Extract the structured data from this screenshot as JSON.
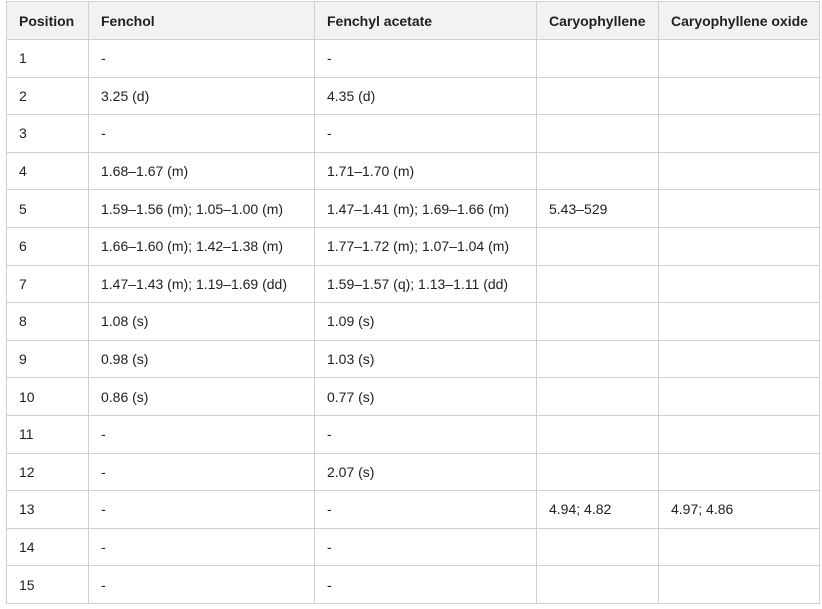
{
  "table": {
    "columns": [
      "Position",
      "Fenchol",
      "Fenchyl acetate",
      "Caryophyllene",
      "Caryophyllene oxide"
    ],
    "rows": [
      [
        "1",
        "-",
        "-",
        "",
        ""
      ],
      [
        "2",
        "3.25 (d)",
        "4.35 (d)",
        "",
        ""
      ],
      [
        "3",
        "-",
        "-",
        "",
        ""
      ],
      [
        "4",
        "1.68–1.67 (m)",
        "1.71–1.70 (m)",
        "",
        ""
      ],
      [
        "5",
        "1.59–1.56 (m); 1.05–1.00 (m)",
        "1.47–1.41 (m); 1.69–1.66 (m)",
        "5.43–529",
        ""
      ],
      [
        "6",
        "1.66–1.60 (m); 1.42–1.38 (m)",
        "1.77–1.72 (m); 1.07–1.04 (m)",
        "",
        ""
      ],
      [
        "7",
        "1.47–1.43 (m); 1.19–1.69 (dd)",
        "1.59–1.57 (q); 1.13–1.11 (dd)",
        "",
        ""
      ],
      [
        "8",
        "1.08 (s)",
        "1.09 (s)",
        "",
        ""
      ],
      [
        "9",
        "0.98 (s)",
        "1.03 (s)",
        "",
        ""
      ],
      [
        "10",
        "0.86 (s)",
        "0.77 (s)",
        "",
        ""
      ],
      [
        "11",
        "-",
        "-",
        "",
        ""
      ],
      [
        "12",
        "-",
        "2.07 (s)",
        "",
        ""
      ],
      [
        "13",
        "-",
        "-",
        "4.94; 4.82",
        "4.97; 4.86"
      ],
      [
        "14",
        "-",
        "-",
        "",
        ""
      ],
      [
        "15",
        "-",
        "-",
        "",
        ""
      ]
    ]
  }
}
